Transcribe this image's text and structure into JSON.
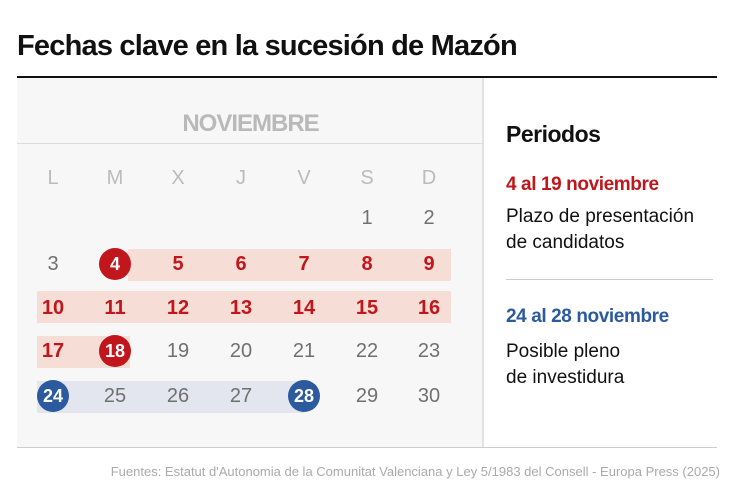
{
  "title": "Fechas clave en la sucesión de Mazón",
  "calendar": {
    "month": "NOVIEMBRE",
    "weekdays": [
      "L",
      "M",
      "X",
      "J",
      "V",
      "S",
      "D"
    ],
    "days": {
      "d1": "1",
      "d2": "2",
      "d3": "3",
      "d4": "4",
      "d5": "5",
      "d6": "6",
      "d7": "7",
      "d8": "8",
      "d9": "9",
      "d10": "10",
      "d11": "11",
      "d12": "12",
      "d13": "13",
      "d14": "14",
      "d15": "15",
      "d16": "16",
      "d17": "17",
      "d18": "18",
      "d19": "19",
      "d20": "20",
      "d21": "21",
      "d22": "22",
      "d23": "23",
      "d24": "24",
      "d25": "25",
      "d26": "26",
      "d27": "27",
      "d28": "28",
      "d29": "29",
      "d30": "30"
    }
  },
  "legend": {
    "title": "Periodos",
    "items": [
      {
        "range": "4 al 19 noviembre",
        "line1": "Plazo de presentación",
        "line2": "de candidatos",
        "color": "#c0161c"
      },
      {
        "range": "24 al 28 noviembre",
        "line1": "Posible pleno",
        "line2": "de investidura",
        "color": "#2b5a9e"
      }
    ]
  },
  "source": "Fuentes: Estatut d'Autonomia de la Comunitat Valenciana y Ley 5/1983 del Consell - Europa Press (2025)"
}
